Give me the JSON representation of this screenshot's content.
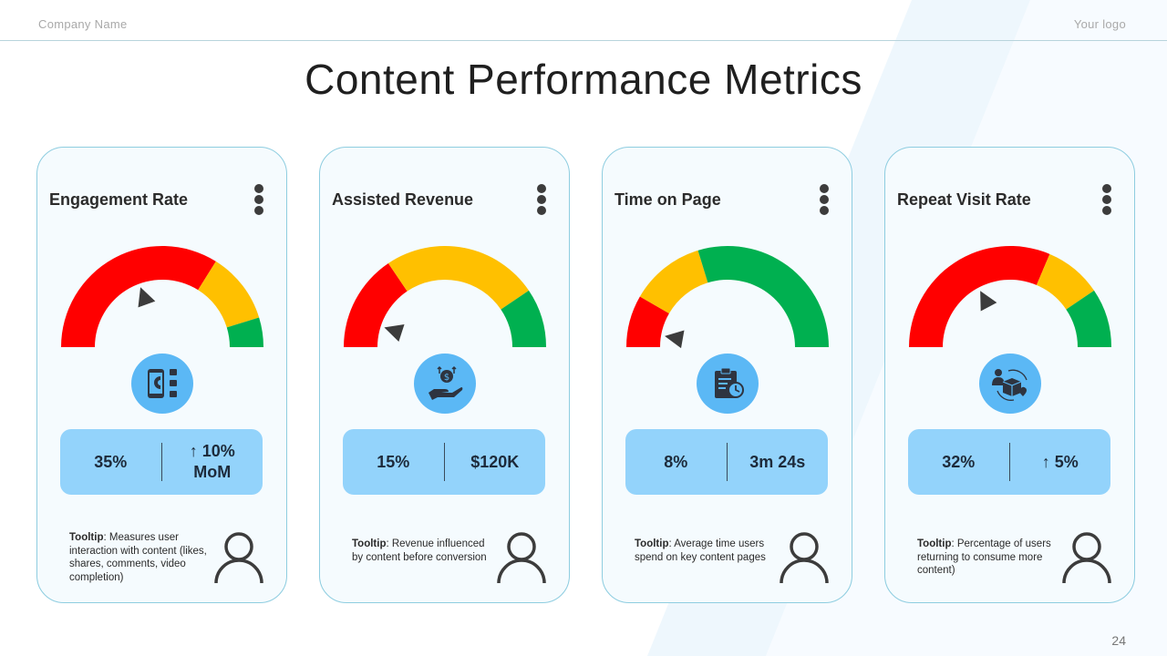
{
  "header": {
    "company_name": "Company Name",
    "logo_text": "Your logo"
  },
  "page_title": "Content Performance Metrics",
  "page_number": "24",
  "colors": {
    "red": "#ff0000",
    "yellow": "#ffc000",
    "green": "#00b050",
    "needle": "#3c3c3c",
    "icon_circle": "#5bb8f5",
    "stats_panel": "#93d3fb",
    "card_border": "#8ecde0"
  },
  "cards": [
    {
      "title": "Engagement Rate",
      "icon": "mobile-magnet-users-icon",
      "gauge": {
        "red_end_deg": 122,
        "yellow_end_deg": 163,
        "needle_deg": 70
      },
      "stat_primary": "35%",
      "stat_secondary_arrow": "↑",
      "stat_secondary": "10%",
      "stat_secondary_line2": "MoM",
      "tooltip_label": "Tooltip",
      "tooltip_text": ": Measures user interaction with content (likes, shares, comments, video completion)"
    },
    {
      "title": "Assisted Revenue",
      "icon": "hand-dollar-coin-icon",
      "gauge": {
        "red_end_deg": 56,
        "yellow_end_deg": 146,
        "needle_deg": 18
      },
      "stat_primary": "15%",
      "stat_secondary_arrow": "",
      "stat_secondary": "$120K",
      "stat_secondary_line2": "",
      "tooltip_label": "Tooltip",
      "tooltip_text": ": Revenue influenced by content before conversion"
    },
    {
      "title": "Time on Page",
      "icon": "clipboard-clock-icon",
      "gauge": {
        "red_end_deg": 30,
        "yellow_end_deg": 73,
        "needle_deg": 10
      },
      "stat_primary": "8%",
      "stat_secondary_arrow": "",
      "stat_secondary": "3m 24s",
      "stat_secondary_line2": "",
      "tooltip_label": "Tooltip",
      "tooltip_text": ": Average time users spend on key content pages"
    },
    {
      "title": "Repeat Visit Rate",
      "icon": "user-box-heart-cycle-icon",
      "gauge": {
        "red_end_deg": 113,
        "yellow_end_deg": 146,
        "needle_deg": 62
      },
      "stat_primary": "32%",
      "stat_secondary_arrow": "↑",
      "stat_secondary": "5%",
      "stat_secondary_line2": "",
      "tooltip_label": "Tooltip",
      "tooltip_text": ": Percentage of users returning to consume more content)"
    }
  ]
}
